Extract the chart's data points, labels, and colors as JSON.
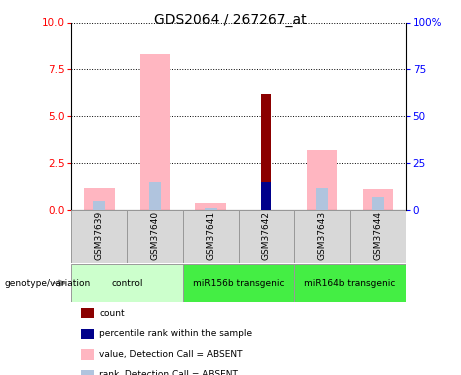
{
  "title": "GDS2064 / 267267_at",
  "samples": [
    "GSM37639",
    "GSM37640",
    "GSM37641",
    "GSM37642",
    "GSM37643",
    "GSM37644"
  ],
  "value_absent": [
    1.2,
    8.3,
    0.4,
    0.0,
    3.2,
    1.1
  ],
  "rank_absent": [
    0.5,
    1.5,
    0.1,
    0.0,
    1.2,
    0.7
  ],
  "count": [
    0.0,
    0.0,
    0.0,
    6.2,
    0.0,
    0.0
  ],
  "percentile_rank": [
    0.0,
    0.0,
    0.0,
    1.5,
    0.0,
    0.0
  ],
  "ylim_left": [
    0,
    10
  ],
  "ylim_right": [
    0,
    100
  ],
  "yticks_left": [
    0,
    2.5,
    5.0,
    7.5,
    10
  ],
  "yticks_right": [
    0,
    25,
    50,
    75,
    100
  ],
  "color_value_absent": "#FFB6C1",
  "color_rank_absent": "#B0C4DE",
  "color_count": "#8B0000",
  "color_percentile": "#00008B",
  "group_configs": [
    {
      "label": "control",
      "xmin": -0.5,
      "xmax": 1.5,
      "color": "#CCFFCC"
    },
    {
      "label": "miR156b transgenic",
      "xmin": 1.5,
      "xmax": 3.5,
      "color": "#44EE44"
    },
    {
      "label": "miR164b transgenic",
      "xmin": 3.5,
      "xmax": 5.5,
      "color": "#44EE44"
    }
  ],
  "legend_items": [
    {
      "color": "#8B0000",
      "label": "count"
    },
    {
      "color": "#00008B",
      "label": "percentile rank within the sample"
    },
    {
      "color": "#FFB6C1",
      "label": "value, Detection Call = ABSENT"
    },
    {
      "color": "#B0C4DE",
      "label": "rank, Detection Call = ABSENT"
    }
  ]
}
